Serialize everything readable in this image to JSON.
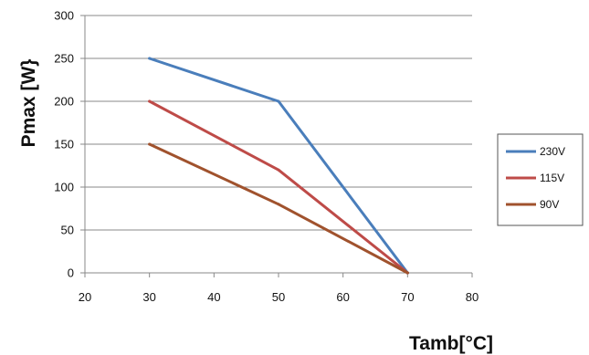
{
  "chart_data": {
    "type": "line",
    "xlabel": "Tamb[°C]",
    "ylabel": "Pmax [W}",
    "xlim": [
      20,
      80
    ],
    "ylim": [
      0,
      300
    ],
    "xticks": [
      20,
      30,
      40,
      50,
      60,
      70,
      80
    ],
    "yticks": [
      0,
      50,
      100,
      150,
      200,
      250,
      300
    ],
    "grid": "horizontal",
    "legend_position": "right",
    "series": [
      {
        "name": "230V",
        "color": "#4a7ebb",
        "x": [
          30,
          50,
          70
        ],
        "y": [
          250,
          200,
          0
        ]
      },
      {
        "name": "115V",
        "color": "#be4b48",
        "x": [
          30,
          50,
          70
        ],
        "y": [
          200,
          120,
          0
        ]
      },
      {
        "name": "90V",
        "color": "#a0522d",
        "x": [
          30,
          50,
          70
        ],
        "y": [
          150,
          80,
          0
        ]
      }
    ]
  }
}
